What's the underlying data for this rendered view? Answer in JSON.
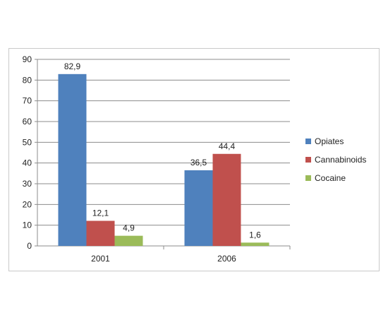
{
  "chart_data": {
    "type": "bar",
    "categories": [
      "2001",
      "2006"
    ],
    "series": [
      {
        "name": "Opiates",
        "values": [
          82.9,
          36.5
        ],
        "labels": [
          "82,9",
          "36,5"
        ],
        "color": "#4f81bd"
      },
      {
        "name": "Cannabinoids",
        "values": [
          12.1,
          44.4
        ],
        "labels": [
          "12,1",
          "44,4"
        ],
        "color": "#c0504d"
      },
      {
        "name": "Cocaine",
        "values": [
          4.9,
          1.6
        ],
        "labels": [
          "4,9",
          "1,6"
        ],
        "color": "#9bbb59"
      }
    ],
    "y_ticks": [
      0,
      10,
      20,
      30,
      40,
      50,
      60,
      70,
      80,
      90
    ],
    "ylim": [
      0,
      90
    ],
    "title": "",
    "xlabel": "",
    "ylabel": "",
    "grid": true,
    "legend_position": "right"
  }
}
